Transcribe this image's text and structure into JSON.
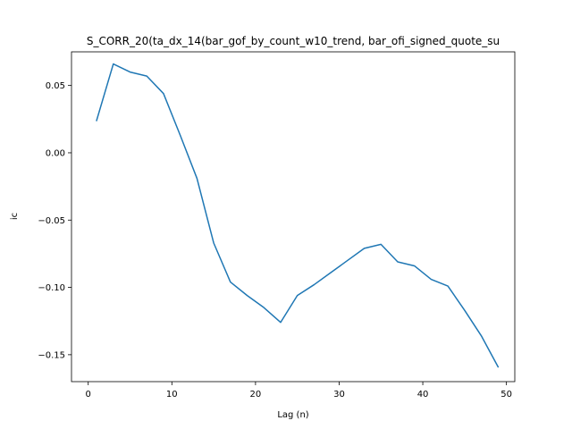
{
  "chart_data": {
    "type": "line",
    "title": "S_CORR_20(ta_dx_14(bar_gof_by_count_w10_trend, bar_ofi_signed_quote_su",
    "xlabel": "Lag (n)",
    "ylabel": "ic",
    "xlim": [
      -2,
      51
    ],
    "ylim": [
      -0.17,
      0.075
    ],
    "xticks": [
      0,
      10,
      20,
      30,
      40,
      50
    ],
    "xtick_labels": [
      "0",
      "10",
      "20",
      "30",
      "40",
      "50"
    ],
    "yticks": [
      0.05,
      0.0,
      -0.05,
      -0.1,
      -0.15
    ],
    "ytick_labels": [
      "0.05",
      "0.00",
      "−0.05",
      "−0.10",
      "−0.15"
    ],
    "grid": false,
    "series": [
      {
        "color": "#1f77b4",
        "x": [
          1,
          3,
          5,
          7,
          9,
          11,
          13,
          15,
          17,
          19,
          21,
          23,
          25,
          27,
          29,
          31,
          33,
          35,
          37,
          39,
          41,
          43,
          45,
          47,
          49
        ],
        "y": [
          0.024,
          0.066,
          0.06,
          0.057,
          0.044,
          0.013,
          -0.019,
          -0.067,
          -0.096,
          -0.106,
          -0.115,
          -0.126,
          -0.106,
          -0.098,
          -0.089,
          -0.08,
          -0.071,
          -0.068,
          -0.081,
          -0.084,
          -0.094,
          -0.099,
          -0.117,
          -0.136,
          -0.159
        ]
      }
    ]
  }
}
